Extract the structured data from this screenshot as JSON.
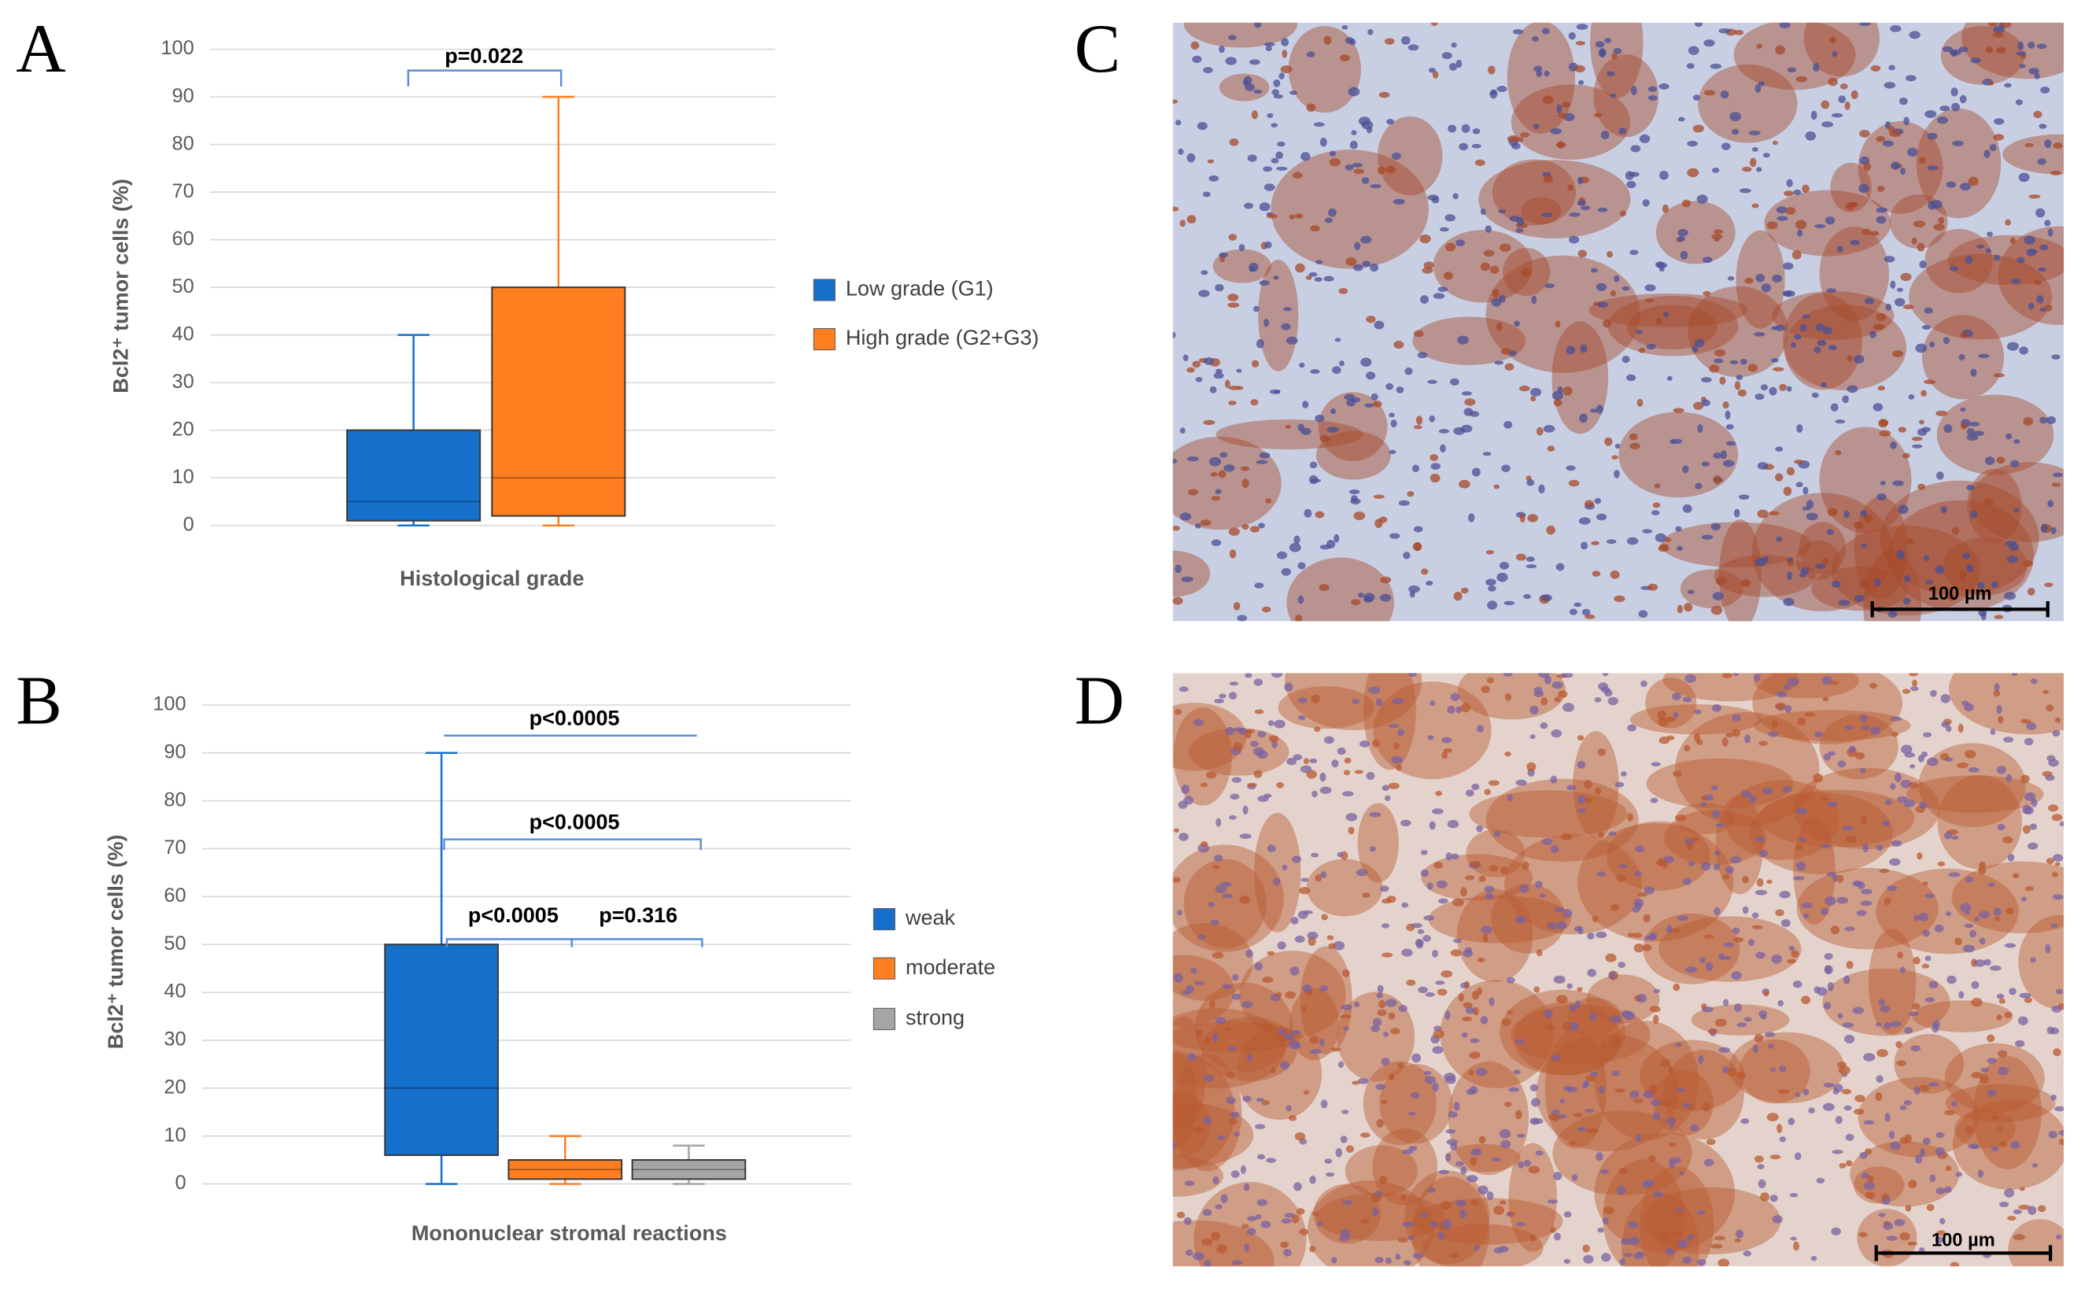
{
  "panels": [
    "A",
    "B",
    "C",
    "D"
  ],
  "chart_data": [
    {
      "type": "box",
      "ylabel": "Bcl2⁺ tumor cells (%)",
      "xlabel": "Histological grade",
      "ylim": [
        0,
        100
      ],
      "yticks": [
        0,
        10,
        20,
        30,
        40,
        50,
        60,
        70,
        80,
        90,
        100
      ],
      "grid": true,
      "legend": "right",
      "series": [
        {
          "name": "Low grade (G1)",
          "color": "#1570cc",
          "values": [
            0,
            1,
            5,
            20,
            40
          ]
        },
        {
          "name": "High grade (G2+G3)",
          "color": "#ff7f20",
          "values": [
            0,
            2,
            10,
            50,
            90
          ]
        }
      ],
      "annotations": [
        "p=0.022"
      ]
    },
    {
      "type": "box",
      "ylabel": "Bcl2⁺ tumor cells (%)",
      "xlabel": "Mononuclear  stromal reactions",
      "ylim": [
        0,
        100
      ],
      "yticks": [
        0,
        10,
        20,
        30,
        40,
        50,
        60,
        70,
        80,
        90,
        100
      ],
      "grid": true,
      "legend": "right",
      "series": [
        {
          "name": "weak",
          "color": "#1570cc",
          "values": [
            0,
            6,
            20,
            50,
            90
          ]
        },
        {
          "name": "moderate",
          "color": "#ff7f20",
          "values": [
            0,
            1,
            3,
            5,
            10
          ]
        },
        {
          "name": "strong",
          "color": "#a5a5a5",
          "values": [
            0,
            1,
            3,
            5,
            8
          ]
        }
      ],
      "annotations": [
        "p<0.0005",
        "p<0.0005",
        "p<0.0005",
        "p=0.316"
      ]
    }
  ],
  "images": [
    {
      "scale": "100 µm"
    },
    {
      "scale": "100 µm"
    }
  ]
}
